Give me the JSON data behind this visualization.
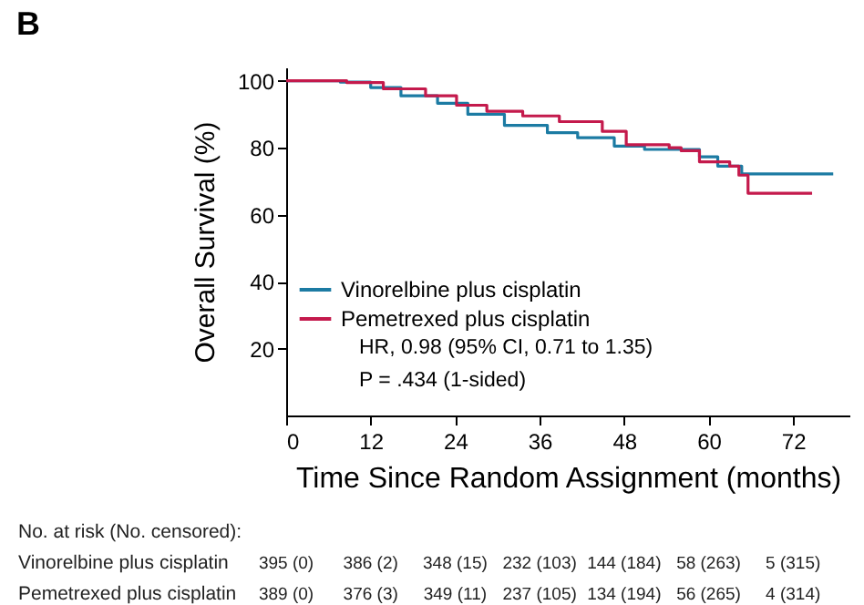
{
  "chart_data": {
    "type": "step",
    "title": "B",
    "xlabel": "Time Since Random Assignment (months)",
    "ylabel": "Overall Survival (%)",
    "xlim": [
      0,
      80
    ],
    "xticks": [
      0,
      12,
      24,
      36,
      48,
      60,
      72
    ],
    "ylim": [
      0,
      104
    ],
    "yticks": [
      20,
      40,
      60,
      80,
      100
    ],
    "legend": "bottom left",
    "grid": false,
    "series": [
      {
        "name": "Vinorelbine plus cisplatin",
        "color": "#1c7ba3",
        "x": [
          0,
          7.7,
          12,
          16.3,
          21.5,
          25.8,
          31,
          37.1,
          41.4,
          46.6,
          50.9,
          55.2,
          58.7,
          61.3,
          64.7,
          77.7
        ],
        "values": [
          100,
          99.6,
          98,
          95.5,
          93.3,
          90,
          86.7,
          84.5,
          83,
          80.5,
          79.5,
          79.5,
          77.3,
          74.5,
          72.2,
          72.2
        ]
      },
      {
        "name": "Pemetrexed plus cisplatin",
        "color": "#c41a4c",
        "x": [
          0,
          8.6,
          13.8,
          19.8,
          24.2,
          28.5,
          33.6,
          38.8,
          44.9,
          48.3,
          54.4,
          56.1,
          58.7,
          63,
          64.3,
          65.6,
          74.7
        ],
        "values": [
          100,
          99.5,
          97.6,
          95.5,
          92.7,
          90.9,
          89.5,
          87.8,
          84.9,
          80.9,
          80,
          79.1,
          75.8,
          74.5,
          71.8,
          66.4,
          66.4
        ]
      }
    ],
    "annotations": [
      "HR, 0.98 (95% CI, 0.71 to 1.35)",
      "P = .434 (1-sided)",
      "No. at risk (No. censored):",
      "Vinorelbine plus cisplatin",
      "395 (0)",
      "386 (2)",
      "348 (15)",
      "232 (103)",
      "144 (184)",
      "58 (263)",
      "5 (315)",
      "Pemetrexed plus cisplatin",
      "389 (0)",
      "376 (3)",
      "349 (11)",
      "237 (105)",
      "134 (194)",
      "56 (265)",
      "4 (314)"
    ]
  }
}
